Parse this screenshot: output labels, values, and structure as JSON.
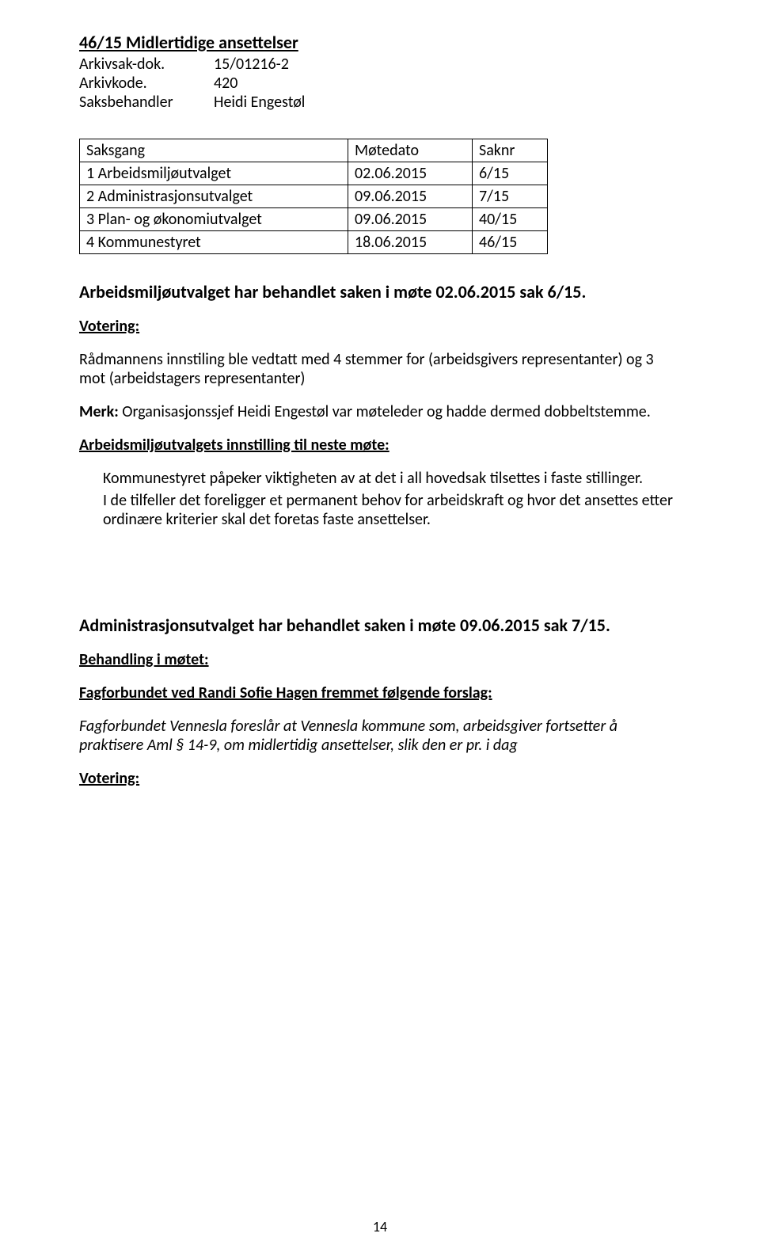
{
  "title": "46/15 Midlertidige ansettelser",
  "meta": [
    {
      "label": "Arkivsak-dok.",
      "value": "15/01216-2"
    },
    {
      "label": "Arkivkode.",
      "value": "420"
    },
    {
      "label": "Saksbehandler",
      "value": "Heidi Engestøl"
    }
  ],
  "table": {
    "headers": [
      "Saksgang",
      "Møtedato",
      "Saknr"
    ],
    "rows": [
      [
        "1 Arbeidsmiljøutvalget",
        "02.06.2015",
        "6/15"
      ],
      [
        "2 Administrasjonsutvalget",
        "09.06.2015",
        "7/15"
      ],
      [
        "3 Plan- og økonomiutvalget",
        "09.06.2015",
        "40/15"
      ],
      [
        "4 Kommunestyret",
        "18.06.2015",
        "46/15"
      ]
    ]
  },
  "section1": {
    "heading": "Arbeidsmiljøutvalget har behandlet saken i møte 02.06.2015 sak 6/15.",
    "votering_label": "Votering:",
    "para1": "Rådmannens innstiling ble vedtatt med 4 stemmer for (arbeidsgivers representanter) og 3 mot (arbeidstagers representanter)",
    "note_lead": "Merk:",
    "note_rest": " Organisasjonssjef Heidi Engestøl var møteleder og hadde dermed dobbeltstemme.",
    "innstilling_label": "Arbeidsmiljøutvalgets innstilling til neste møte:",
    "block1a": "Kommunestyret påpeker viktigheten av at det i all hovedsak tilsettes i faste stillinger.",
    "block1b": "I de tilfeller det foreligger et permanent behov for arbeidskraft og hvor det ansettes etter ordinære kriterier skal det foretas faste ansettelser."
  },
  "section2": {
    "heading": "Administrasjonsutvalget har behandlet saken i møte 09.06.2015 sak 7/15.",
    "behandling_label": "Behandling i møtet:",
    "proposal_label": "Fagforbundet ved Randi Sofie Hagen fremmet følgende forslag:",
    "proposal_text": "Fagforbundet Vennesla foreslår at Vennesla kommune som, arbeidsgiver fortsetter å praktisere Aml § 14-9, om midlertidig ansettelser, slik den er pr. i dag",
    "votering_label": "Votering:"
  },
  "page_number": "14"
}
